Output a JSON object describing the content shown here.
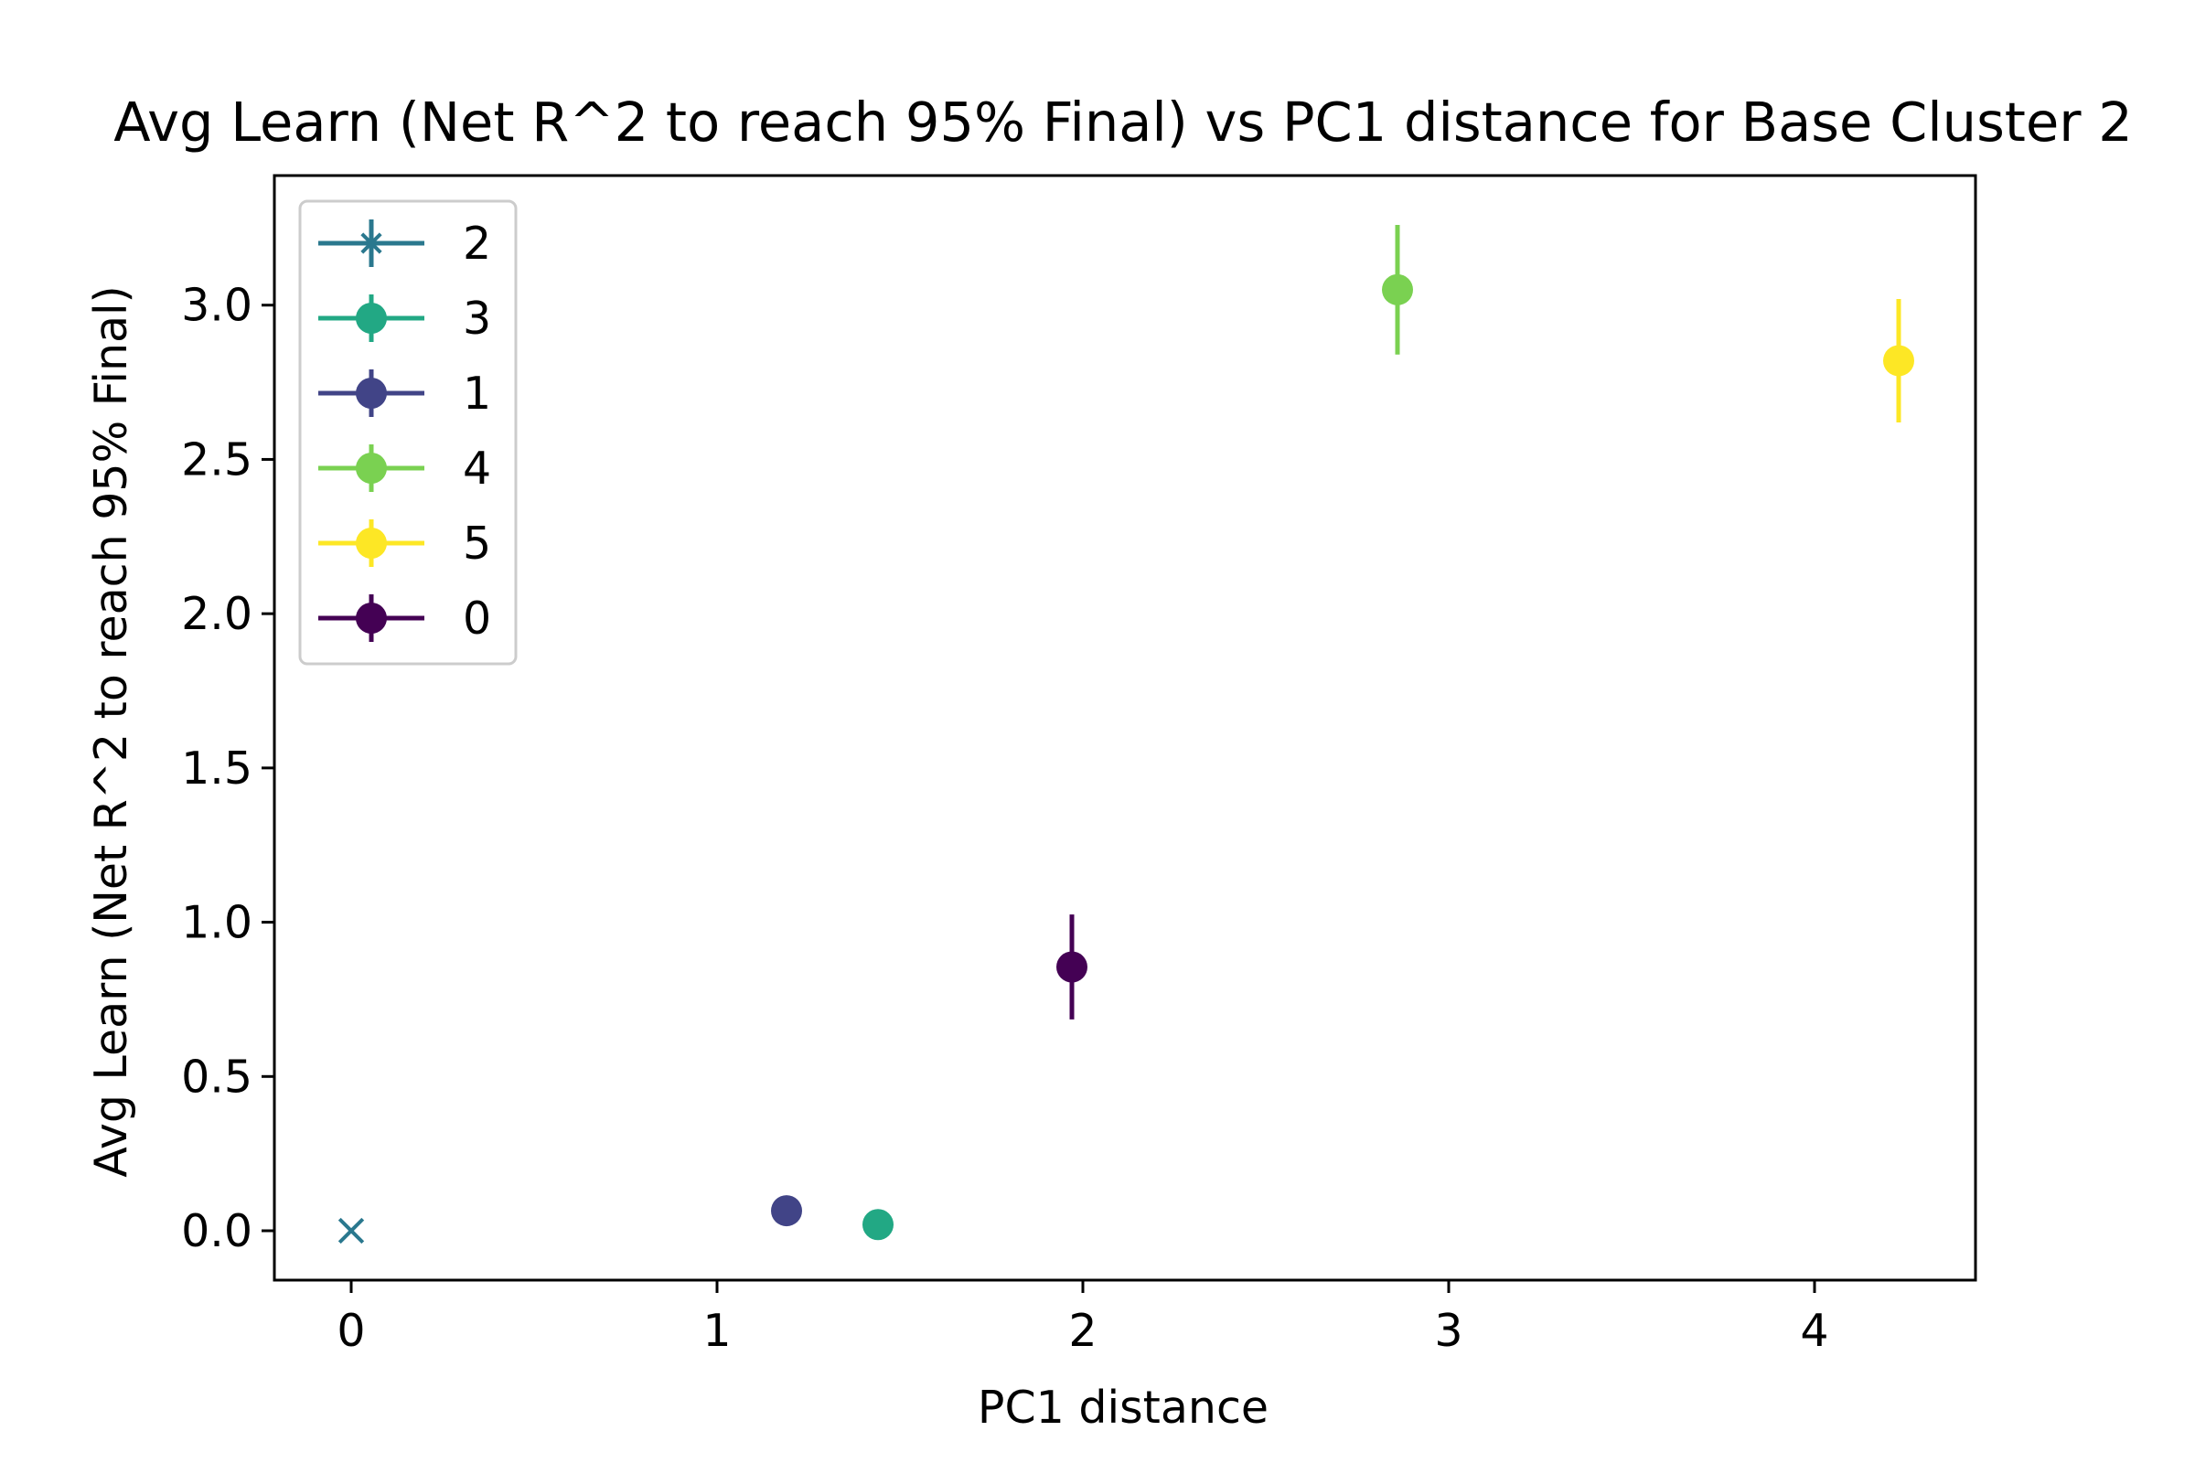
{
  "chart_data": {
    "type": "scatter",
    "title": "Avg Learn (Net R^2 to reach 95% Final) vs PC1 distance for Base Cluster 2",
    "xlabel": "PC1 distance",
    "ylabel": "Avg Learn (Net R^2 to reach 95% Final)",
    "xlim": [
      -0.21,
      4.44
    ],
    "ylim": [
      -0.16,
      3.42
    ],
    "x_ticks": [
      0,
      1,
      2,
      3,
      4
    ],
    "x_tick_labels": [
      "0",
      "1",
      "2",
      "3",
      "4"
    ],
    "y_ticks": [
      0.0,
      0.5,
      1.0,
      1.5,
      2.0,
      2.5,
      3.0
    ],
    "y_tick_labels": [
      "0.0",
      "0.5",
      "1.0",
      "1.5",
      "2.0",
      "2.5",
      "3.0"
    ],
    "grid": false,
    "legend_position": "upper-left",
    "series": [
      {
        "name": "2",
        "color": "#2a788e",
        "marker": "x",
        "x": 0.0,
        "y": 0.0,
        "err": 0.0
      },
      {
        "name": "3",
        "color": "#22a884",
        "marker": "o",
        "x": 1.44,
        "y": 0.02,
        "err": 0.0
      },
      {
        "name": "1",
        "color": "#414487",
        "marker": "o",
        "x": 1.19,
        "y": 0.065,
        "err": 0.0
      },
      {
        "name": "4",
        "color": "#7ad151",
        "marker": "o",
        "x": 2.86,
        "y": 3.05,
        "err": 0.21
      },
      {
        "name": "5",
        "color": "#fde725",
        "marker": "o",
        "x": 4.23,
        "y": 2.82,
        "err": 0.2
      },
      {
        "name": "0",
        "color": "#440154",
        "marker": "o",
        "x": 1.97,
        "y": 0.855,
        "err": 0.17
      }
    ]
  }
}
